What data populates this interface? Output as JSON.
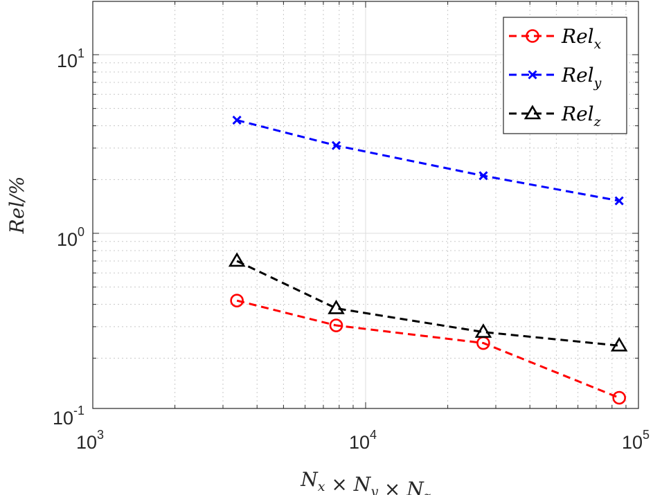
{
  "chart_data": {
    "type": "line",
    "scale": {
      "x": "log",
      "y": "log"
    },
    "xlim": [
      1000,
      100000
    ],
    "ylim": [
      0.1,
      20
    ],
    "grid": true,
    "minor_grid": true,
    "xlabel": {
      "base": "N",
      "parts": [
        {
          "sub": "x"
        },
        {
          "op": " × "
        },
        {
          "base": "N",
          "sub": "y"
        },
        {
          "op": " × "
        },
        {
          "base": "N",
          "sub": "z"
        }
      ]
    },
    "ylabel": "Rel/%",
    "x_ticks": [
      {
        "value": 1000,
        "base": "10",
        "exp": "3"
      },
      {
        "value": 10000,
        "base": "10",
        "exp": "4"
      },
      {
        "value": 100000,
        "base": "10",
        "exp": "5"
      }
    ],
    "y_ticks": [
      {
        "value": 0.1,
        "base": "10",
        "exp": "-1"
      },
      {
        "value": 1,
        "base": "10",
        "exp": "0"
      },
      {
        "value": 10,
        "base": "10",
        "exp": "1"
      }
    ],
    "x": [
      3375,
      7800,
      27000,
      85000
    ],
    "series": [
      {
        "name": "Rel",
        "sub": "x",
        "color": "#ff0000",
        "marker": "circle",
        "values": [
          0.42,
          0.305,
          0.243,
          0.12
        ]
      },
      {
        "name": "Rel",
        "sub": "y",
        "color": "#0000ff",
        "marker": "x",
        "values": [
          4.3,
          3.1,
          2.1,
          1.52
        ]
      },
      {
        "name": "Rel",
        "sub": "z",
        "color": "#000000",
        "marker": "triangle",
        "values": [
          0.7,
          0.38,
          0.28,
          0.235
        ]
      }
    ],
    "legend": "top-right"
  }
}
